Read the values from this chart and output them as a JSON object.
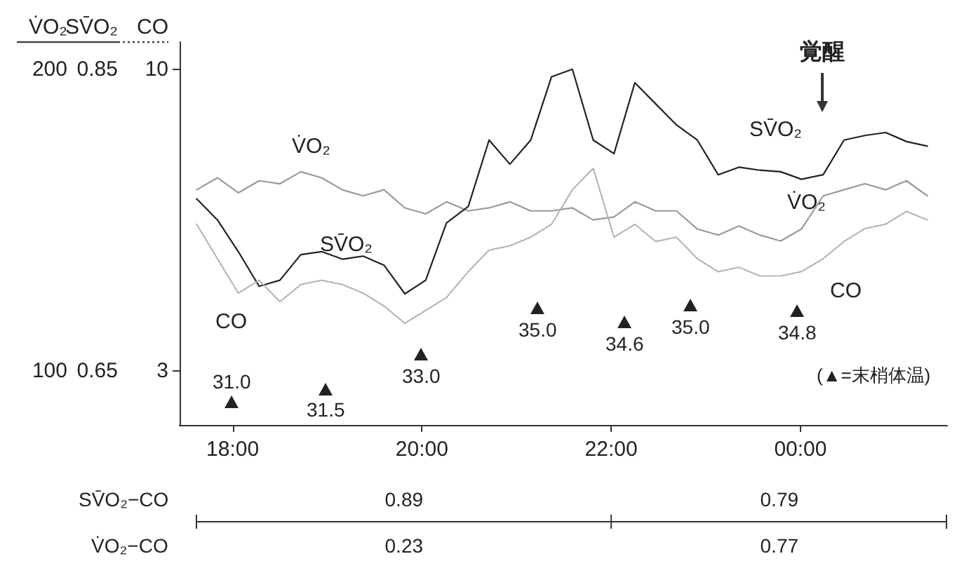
{
  "chart_data": {
    "type": "line",
    "ylabel": "V̇O₂",
    "y2label": "SV̄O₂",
    "y3label": "CO",
    "xlim": [
      17.44,
      25.55
    ],
    "xticks": [
      {
        "value": 18,
        "label": "18:00"
      },
      {
        "value": 20,
        "label": "20:00"
      },
      {
        "value": 22,
        "label": "22:00"
      },
      {
        "value": 24,
        "label": "00:00"
      }
    ],
    "ylim": [
      82,
      209
    ],
    "yticks": [
      100,
      200
    ],
    "y2lim": [
      0.614,
      0.868
    ],
    "y2ticks": [
      0.65,
      0.85
    ],
    "y3lim": [
      1.74,
      10.63
    ],
    "y3ticks": [
      3,
      10
    ],
    "marker": "none",
    "x": [
      17.62,
      17.84,
      18.06,
      18.28,
      18.5,
      18.72,
      18.94,
      19.16,
      19.38,
      19.6,
      19.82,
      20.04,
      20.26,
      20.49,
      20.71,
      20.93,
      21.15,
      21.37,
      21.59,
      21.81,
      22.03,
      22.25,
      22.47,
      22.69,
      22.91,
      23.13,
      23.35,
      23.57,
      23.79,
      24.01,
      24.24,
      24.46,
      24.68,
      24.9,
      25.12,
      25.34
    ],
    "series": [
      {
        "name": "V̇O₂",
        "color": "#9a9a9a",
        "line_style": "solid",
        "values": [
          160,
          164,
          159,
          163,
          162,
          166,
          164,
          160,
          158,
          160,
          154,
          152,
          156,
          153,
          154,
          156,
          153,
          153,
          154,
          150,
          151,
          156,
          153,
          153,
          147,
          145,
          148,
          145,
          143,
          147,
          158,
          160,
          162,
          160,
          163,
          158
        ]
      },
      {
        "name": "SV̄O₂",
        "color": "#222222",
        "line_style": "solid",
        "axis": "y2",
        "values": [
          0.764,
          0.75,
          0.729,
          0.706,
          0.71,
          0.727,
          0.729,
          0.724,
          0.726,
          0.72,
          0.701,
          0.71,
          0.748,
          0.759,
          0.803,
          0.787,
          0.803,
          0.845,
          0.85,
          0.803,
          0.794,
          0.841,
          0.827,
          0.813,
          0.803,
          0.78,
          0.785,
          0.783,
          0.782,
          0.777,
          0.78,
          0.803,
          0.806,
          0.808,
          0.802,
          0.799
        ]
      },
      {
        "name": "CO",
        "color": "#b0b0b0",
        "line_style": "dotted",
        "axis": "y3",
        "values": [
          6.4,
          5.6,
          4.8,
          5.1,
          4.6,
          5.0,
          5.1,
          5.0,
          4.8,
          4.5,
          4.1,
          4.4,
          4.7,
          5.3,
          5.8,
          5.9,
          6.1,
          6.4,
          7.2,
          7.7,
          6.1,
          6.4,
          6.0,
          6.1,
          5.6,
          5.3,
          5.4,
          5.2,
          5.2,
          5.3,
          5.6,
          6.0,
          6.3,
          6.4,
          6.7,
          6.5
        ]
      }
    ],
    "annotations": [
      "覚醒",
      "SV̄O₂−CO",
      "0.89",
      "0.79",
      "V̇O₂−CO",
      "0.23",
      "0.77",
      "31.0",
      "31.5",
      "33.0",
      "35.0",
      "34.6",
      "35.0",
      "34.8",
      "(▲=末梢体温)"
    ]
  }
}
